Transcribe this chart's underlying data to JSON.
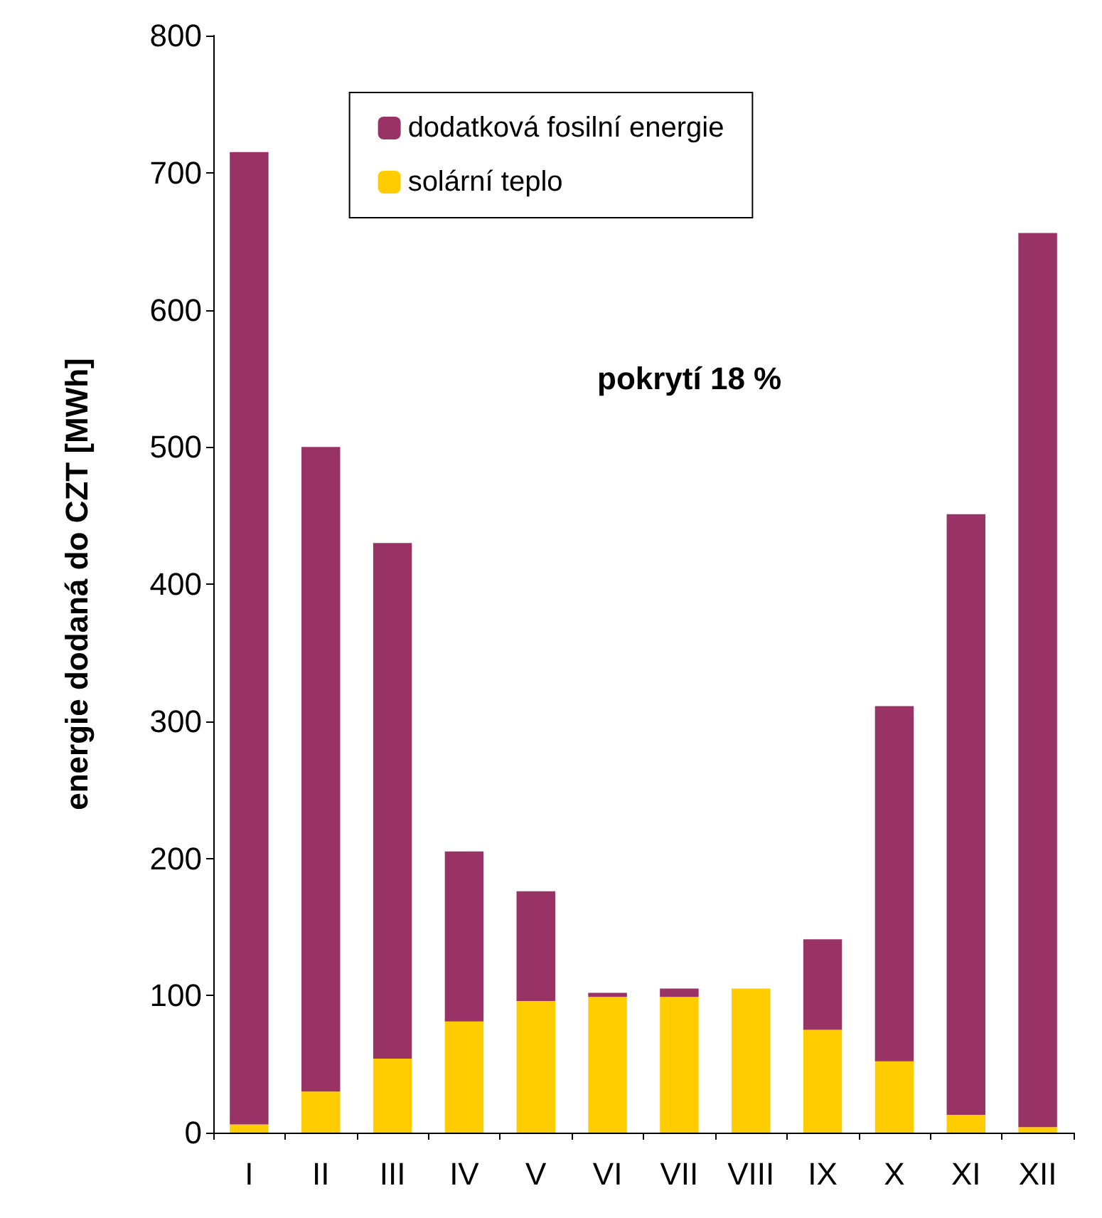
{
  "chart_data": {
    "type": "bar",
    "stacked": true,
    "ylabel": "energie dodaná do CZT [MWh]",
    "categories": [
      "I",
      "II",
      "III",
      "IV",
      "V",
      "VI",
      "VII",
      "VIII",
      "IX",
      "X",
      "XI",
      "XII"
    ],
    "series": [
      {
        "name": "solární teplo",
        "color": "#ffcc00",
        "values": [
          6,
          30,
          54,
          81,
          96,
          99,
          99,
          105,
          75,
          52,
          13,
          4
        ]
      },
      {
        "name": "dodatková fosilní energie",
        "color": "#993366",
        "values": [
          709,
          470,
          376,
          124,
          80,
          3,
          6,
          0,
          66,
          259,
          438,
          652
        ]
      }
    ],
    "ylim": [
      0,
      800
    ],
    "yticks": [
      0,
      100,
      200,
      300,
      400,
      500,
      600,
      700,
      800
    ],
    "grid": false,
    "legend": "top",
    "annotations": [
      "pokrytí 18 %"
    ]
  }
}
